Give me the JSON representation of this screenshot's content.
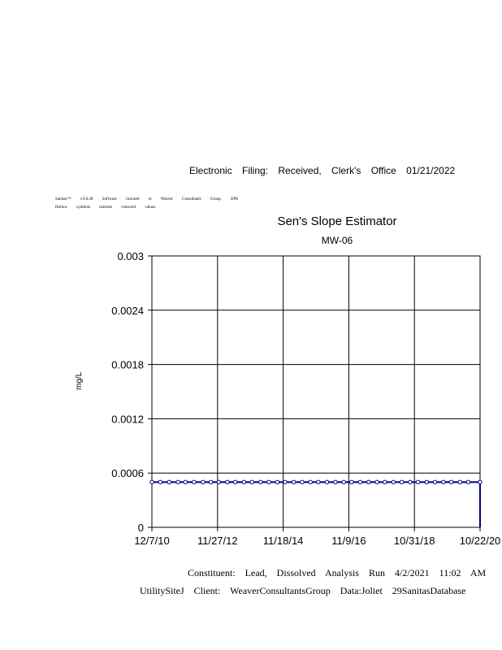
{
  "header": {
    "filing_stamp": "Electronic Filing: Received, Clerk's Office 01/21/2022"
  },
  "license": {
    "line1": "Sanitas™ v.9.6.28 Software licensed to Weaver Consultants Group. EPA",
    "line2": "Hollow symbols indicate censored values."
  },
  "footer": {
    "line1": "Constituent: Lead, Dissolved Analysis Run 4/2/2021 11:02 AM",
    "line2": "UtilitySiteJ Client: WeaverConsultantsGroup Data:Joliet 29SanitasDatabase"
  },
  "chart_data": {
    "type": "line",
    "title": "Sen's Slope Estimator",
    "subtitle": "MW-06",
    "xlabel": "",
    "ylabel": "mg/L",
    "xlim": [
      "2010-12-07",
      "2020-10-22"
    ],
    "ylim": [
      0,
      0.003
    ],
    "x_tick_labels": [
      "12/7/10",
      "11/27/12",
      "11/18/14",
      "11/9/16",
      "10/31/18",
      "10/22/20"
    ],
    "y_tick_labels": [
      "0",
      "0.0006",
      "0.0012",
      "0.0018",
      "0.0024",
      "0.003"
    ],
    "y_ticks": [
      0,
      0.0006,
      0.0012,
      0.0018,
      0.0024,
      0.003
    ],
    "grid": true,
    "series_color": "#000080",
    "marker": "hollow circle (censored)",
    "series": [
      {
        "x": [
          "2010-12-07",
          "2011-03-10",
          "2011-06-15",
          "2011-09-20",
          "2011-12-10",
          "2012-03-15",
          "2012-06-20",
          "2012-09-15",
          "2012-12-10",
          "2013-03-15",
          "2013-06-10",
          "2013-09-15",
          "2013-12-10",
          "2014-03-15",
          "2014-06-15",
          "2014-09-15",
          "2014-12-10",
          "2015-03-15",
          "2015-06-15",
          "2015-09-15",
          "2015-12-10",
          "2016-03-15",
          "2016-06-15",
          "2016-09-15",
          "2016-12-10",
          "2017-03-15",
          "2017-06-15",
          "2017-09-15",
          "2017-12-10",
          "2018-03-15",
          "2018-06-15",
          "2018-09-15",
          "2018-12-10",
          "2019-03-15",
          "2019-06-15",
          "2019-09-15",
          "2019-12-10",
          "2020-03-15",
          "2020-06-15",
          "2020-10-22"
        ],
        "y": [
          0.0005,
          0.0005,
          0.0005,
          0.0005,
          0.0005,
          0.0005,
          0.0005,
          0.0005,
          0.0005,
          0.0005,
          0.0005,
          0.0005,
          0.0005,
          0.0005,
          0.0005,
          0.0005,
          0.0005,
          0.0005,
          0.0005,
          0.0005,
          0.0005,
          0.0005,
          0.0005,
          0.0005,
          0.0005,
          0.0005,
          0.0005,
          0.0005,
          0.0005,
          0.0005,
          0.0005,
          0.0005,
          0.0005,
          0.0005,
          0.0005,
          0.0005,
          0.0005,
          0.0005,
          0.0005,
          0.0005
        ]
      }
    ],
    "trend_line": {
      "y_start": 0.0005,
      "y_end": 0.0005
    }
  }
}
